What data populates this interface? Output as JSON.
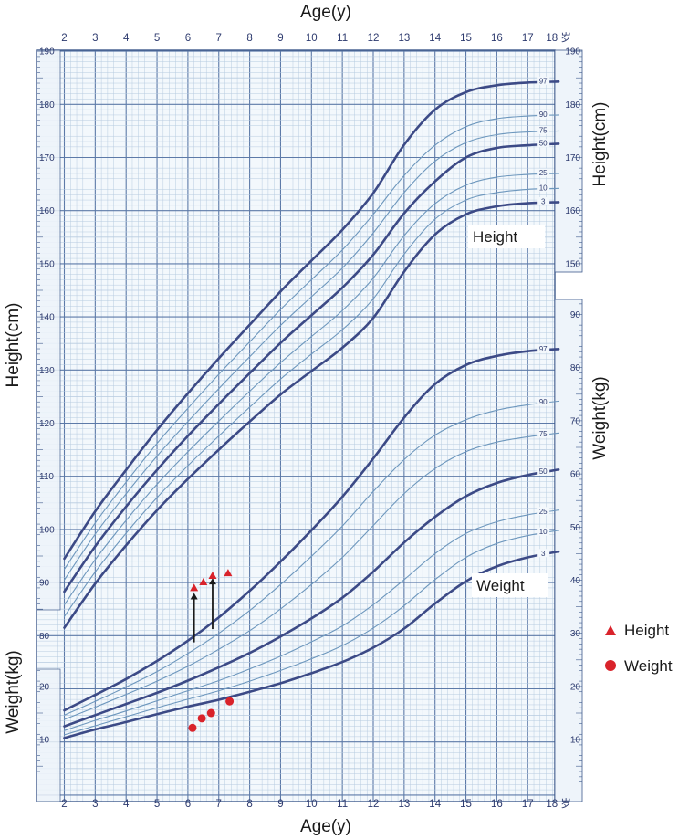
{
  "titles": {
    "top": "Age(y)",
    "bottom": "Age(y)",
    "left_height": "Height(cm)",
    "left_weight": "Weight(kg)",
    "right_height": "Height(cm)",
    "right_weight": "Weight(kg)"
  },
  "x_ticks": [
    "2",
    "3",
    "4",
    "5",
    "6",
    "7",
    "8",
    "9",
    "10",
    "11",
    "12",
    "13",
    "14",
    "15",
    "16",
    "17",
    "18 岁"
  ],
  "sections": {
    "height": "Height",
    "weight": "Weight"
  },
  "legend": {
    "height": "Height",
    "weight": "Weight"
  },
  "colors": {
    "grid_minor": "#b7cbe0",
    "grid_major": "#5d7aa8",
    "frame": "#3f5a8c",
    "thick_curve": "#3c4a86",
    "thin_curve": "#6d97bd",
    "marker": "#d9232b",
    "arrow": "#1a1a1a"
  },
  "chart_data": {
    "type": "line",
    "x": [
      2,
      3,
      4,
      5,
      6,
      7,
      8,
      9,
      10,
      11,
      12,
      13,
      14,
      15,
      16,
      17,
      18
    ],
    "xlabel": "Age(y)",
    "height_axis": {
      "label": "Height(cm)",
      "range": [
        78,
        190
      ],
      "ticks": [
        80,
        90,
        100,
        110,
        120,
        130,
        140,
        150,
        160,
        170,
        180,
        190
      ],
      "right_ticks": [
        150,
        160,
        170,
        180,
        190
      ]
    },
    "weight_axis": {
      "label": "Weight(kg)",
      "range": [
        4,
        92
      ],
      "left_ticks": [
        10,
        20
      ],
      "right_ticks": [
        10,
        20,
        30,
        40,
        50,
        60,
        70,
        80,
        90
      ]
    },
    "height_series": [
      {
        "name": "3",
        "thick": true,
        "values": [
          81.5,
          89.8,
          97.0,
          103.6,
          109.5,
          115.0,
          120.3,
          125.4,
          129.8,
          134.2,
          139.8,
          148.5,
          155.5,
          159.3,
          160.8,
          161.4,
          161.6
        ]
      },
      {
        "name": "10",
        "thick": false,
        "values": [
          83.6,
          92.0,
          99.3,
          106.0,
          112.0,
          117.6,
          123.0,
          128.3,
          133.0,
          137.6,
          143.4,
          151.8,
          158.4,
          162.0,
          163.4,
          164.0,
          164.2
        ]
      },
      {
        "name": "25",
        "thick": false,
        "values": [
          85.8,
          94.3,
          101.7,
          108.5,
          114.6,
          120.4,
          126.0,
          131.4,
          136.3,
          141.2,
          147.3,
          155.3,
          161.3,
          164.8,
          166.3,
          166.8,
          167.0
        ]
      },
      {
        "name": "50",
        "thick": true,
        "values": [
          88.3,
          96.8,
          104.3,
          111.2,
          117.6,
          123.6,
          129.4,
          135.1,
          140.3,
          145.5,
          151.7,
          159.5,
          165.5,
          170.0,
          171.8,
          172.3,
          172.6
        ]
      },
      {
        "name": "75",
        "thick": false,
        "values": [
          90.5,
          99.1,
          106.7,
          113.8,
          120.3,
          126.5,
          132.5,
          138.4,
          143.8,
          149.2,
          155.8,
          163.4,
          169.3,
          172.8,
          174.3,
          174.8,
          175.0
        ]
      },
      {
        "name": "90",
        "thick": false,
        "values": [
          92.5,
          101.2,
          108.9,
          116.2,
          122.8,
          129.2,
          135.3,
          141.4,
          147.0,
          152.6,
          159.3,
          166.6,
          172.3,
          175.8,
          177.3,
          177.8,
          178.0
        ]
      },
      {
        "name": "97",
        "thick": true,
        "values": [
          94.5,
          103.4,
          111.2,
          118.7,
          125.6,
          132.2,
          138.5,
          144.8,
          150.6,
          156.4,
          163.3,
          172.4,
          179.0,
          182.3,
          183.6,
          184.1,
          184.3
        ]
      }
    ],
    "weight_series": [
      {
        "name": "3",
        "thick": true,
        "values": [
          10.3,
          11.9,
          13.3,
          14.8,
          16.2,
          17.5,
          19.0,
          20.6,
          22.5,
          24.6,
          27.3,
          30.9,
          35.6,
          39.8,
          42.6,
          44.3,
          45.4
        ]
      },
      {
        "name": "10",
        "thick": false,
        "values": [
          10.9,
          12.6,
          14.3,
          16.0,
          17.6,
          19.2,
          21.0,
          23.0,
          25.2,
          27.7,
          31.0,
          35.2,
          40.1,
          44.3,
          46.9,
          48.4,
          49.4
        ]
      },
      {
        "name": "25",
        "thick": false,
        "values": [
          11.7,
          13.6,
          15.4,
          17.3,
          19.2,
          21.1,
          23.3,
          25.7,
          28.4,
          31.4,
          35.4,
          40.1,
          45.0,
          48.8,
          51.0,
          52.3,
          53.2
        ]
      },
      {
        "name": "50",
        "thick": true,
        "values": [
          12.5,
          14.6,
          16.7,
          18.8,
          21.1,
          23.6,
          26.3,
          29.4,
          32.8,
          36.7,
          41.6,
          47.1,
          51.9,
          55.8,
          58.3,
          59.8,
          60.8
        ]
      },
      {
        "name": "75",
        "thick": false,
        "values": [
          13.8,
          16.1,
          18.5,
          21.0,
          23.8,
          27.0,
          30.5,
          34.6,
          39.2,
          44.3,
          50.3,
          56.3,
          61.0,
          64.2,
          66.0,
          67.0,
          67.7
        ]
      },
      {
        "name": "90",
        "thick": false,
        "values": [
          14.6,
          17.2,
          19.9,
          22.8,
          26.2,
          30.0,
          34.3,
          39.2,
          44.5,
          50.2,
          56.7,
          62.7,
          67.3,
          70.2,
          72.0,
          73.0,
          73.7
        ]
      },
      {
        "name": "97",
        "thick": true,
        "values": [
          15.5,
          18.4,
          21.4,
          24.8,
          28.6,
          33.0,
          38.0,
          43.5,
          49.4,
          55.7,
          62.9,
          70.6,
          76.9,
          80.5,
          82.2,
          83.1,
          83.5
        ]
      }
    ],
    "height_points": [
      {
        "x": 6.2,
        "y": 89.0
      },
      {
        "x": 6.5,
        "y": 90.1
      },
      {
        "x": 6.8,
        "y": 91.3
      },
      {
        "x": 7.3,
        "y": 91.8
      }
    ],
    "weight_points": [
      {
        "x": 6.15,
        "y": 12.2
      },
      {
        "x": 6.45,
        "y": 14.0
      },
      {
        "x": 6.75,
        "y": 15.0
      },
      {
        "x": 7.35,
        "y": 17.2
      }
    ],
    "arrows": [
      {
        "x": 6.2,
        "y_from": 28.3,
        "y_to": 37.6
      },
      {
        "x": 6.8,
        "y_from": 30.8,
        "y_to": 40.4
      }
    ]
  }
}
